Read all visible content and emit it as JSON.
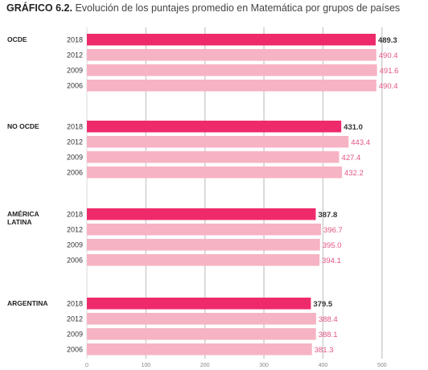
{
  "header": {
    "title_prefix": "GRÁFICO 6.2.",
    "title_text": "Evolución de los puntajes promedio en Matemática por grupos de países"
  },
  "colors": {
    "highlight": "#ee2a6b",
    "light": "#f6b3c3",
    "grid": "#cfcfcf",
    "value_highlight": "#333333",
    "value_light": "#e2557f"
  },
  "chart_data": {
    "type": "bar",
    "orientation": "horizontal",
    "title": "GRÁFICO 6.2. Evolución de los puntajes promedio en Matemática por grupos de países",
    "xlim": [
      0,
      500
    ],
    "xticks": [
      0,
      100,
      200,
      300,
      400,
      500
    ],
    "grid": true,
    "groups": [
      {
        "name_lines": [
          "OCDE"
        ],
        "years": [
          "2018",
          "2012",
          "2009",
          "2006"
        ],
        "values": [
          489.3,
          490.4,
          491.6,
          490.4
        ],
        "labels": [
          "489.3",
          "490.4",
          "491.6",
          "490.4"
        ]
      },
      {
        "name_lines": [
          "NO OCDE"
        ],
        "years": [
          "2018",
          "2012",
          "2009",
          "2006"
        ],
        "values": [
          431.0,
          443.4,
          427.4,
          432.2
        ],
        "labels": [
          "431.0",
          "443.4",
          "427.4",
          "432.2"
        ]
      },
      {
        "name_lines": [
          "AMÉRICA",
          "LATINA"
        ],
        "years": [
          "2018",
          "2012",
          "2009",
          "2006"
        ],
        "values": [
          387.8,
          396.7,
          395.0,
          394.1
        ],
        "labels": [
          "387.8",
          "396.7",
          "395.0",
          "394.1"
        ]
      },
      {
        "name_lines": [
          "ARGENTINA"
        ],
        "years": [
          "2018",
          "2012",
          "2009",
          "2006"
        ],
        "values": [
          379.5,
          388.4,
          388.1,
          381.3
        ],
        "labels": [
          "379.5",
          "388.4",
          "388.1",
          "381.3"
        ]
      }
    ]
  }
}
